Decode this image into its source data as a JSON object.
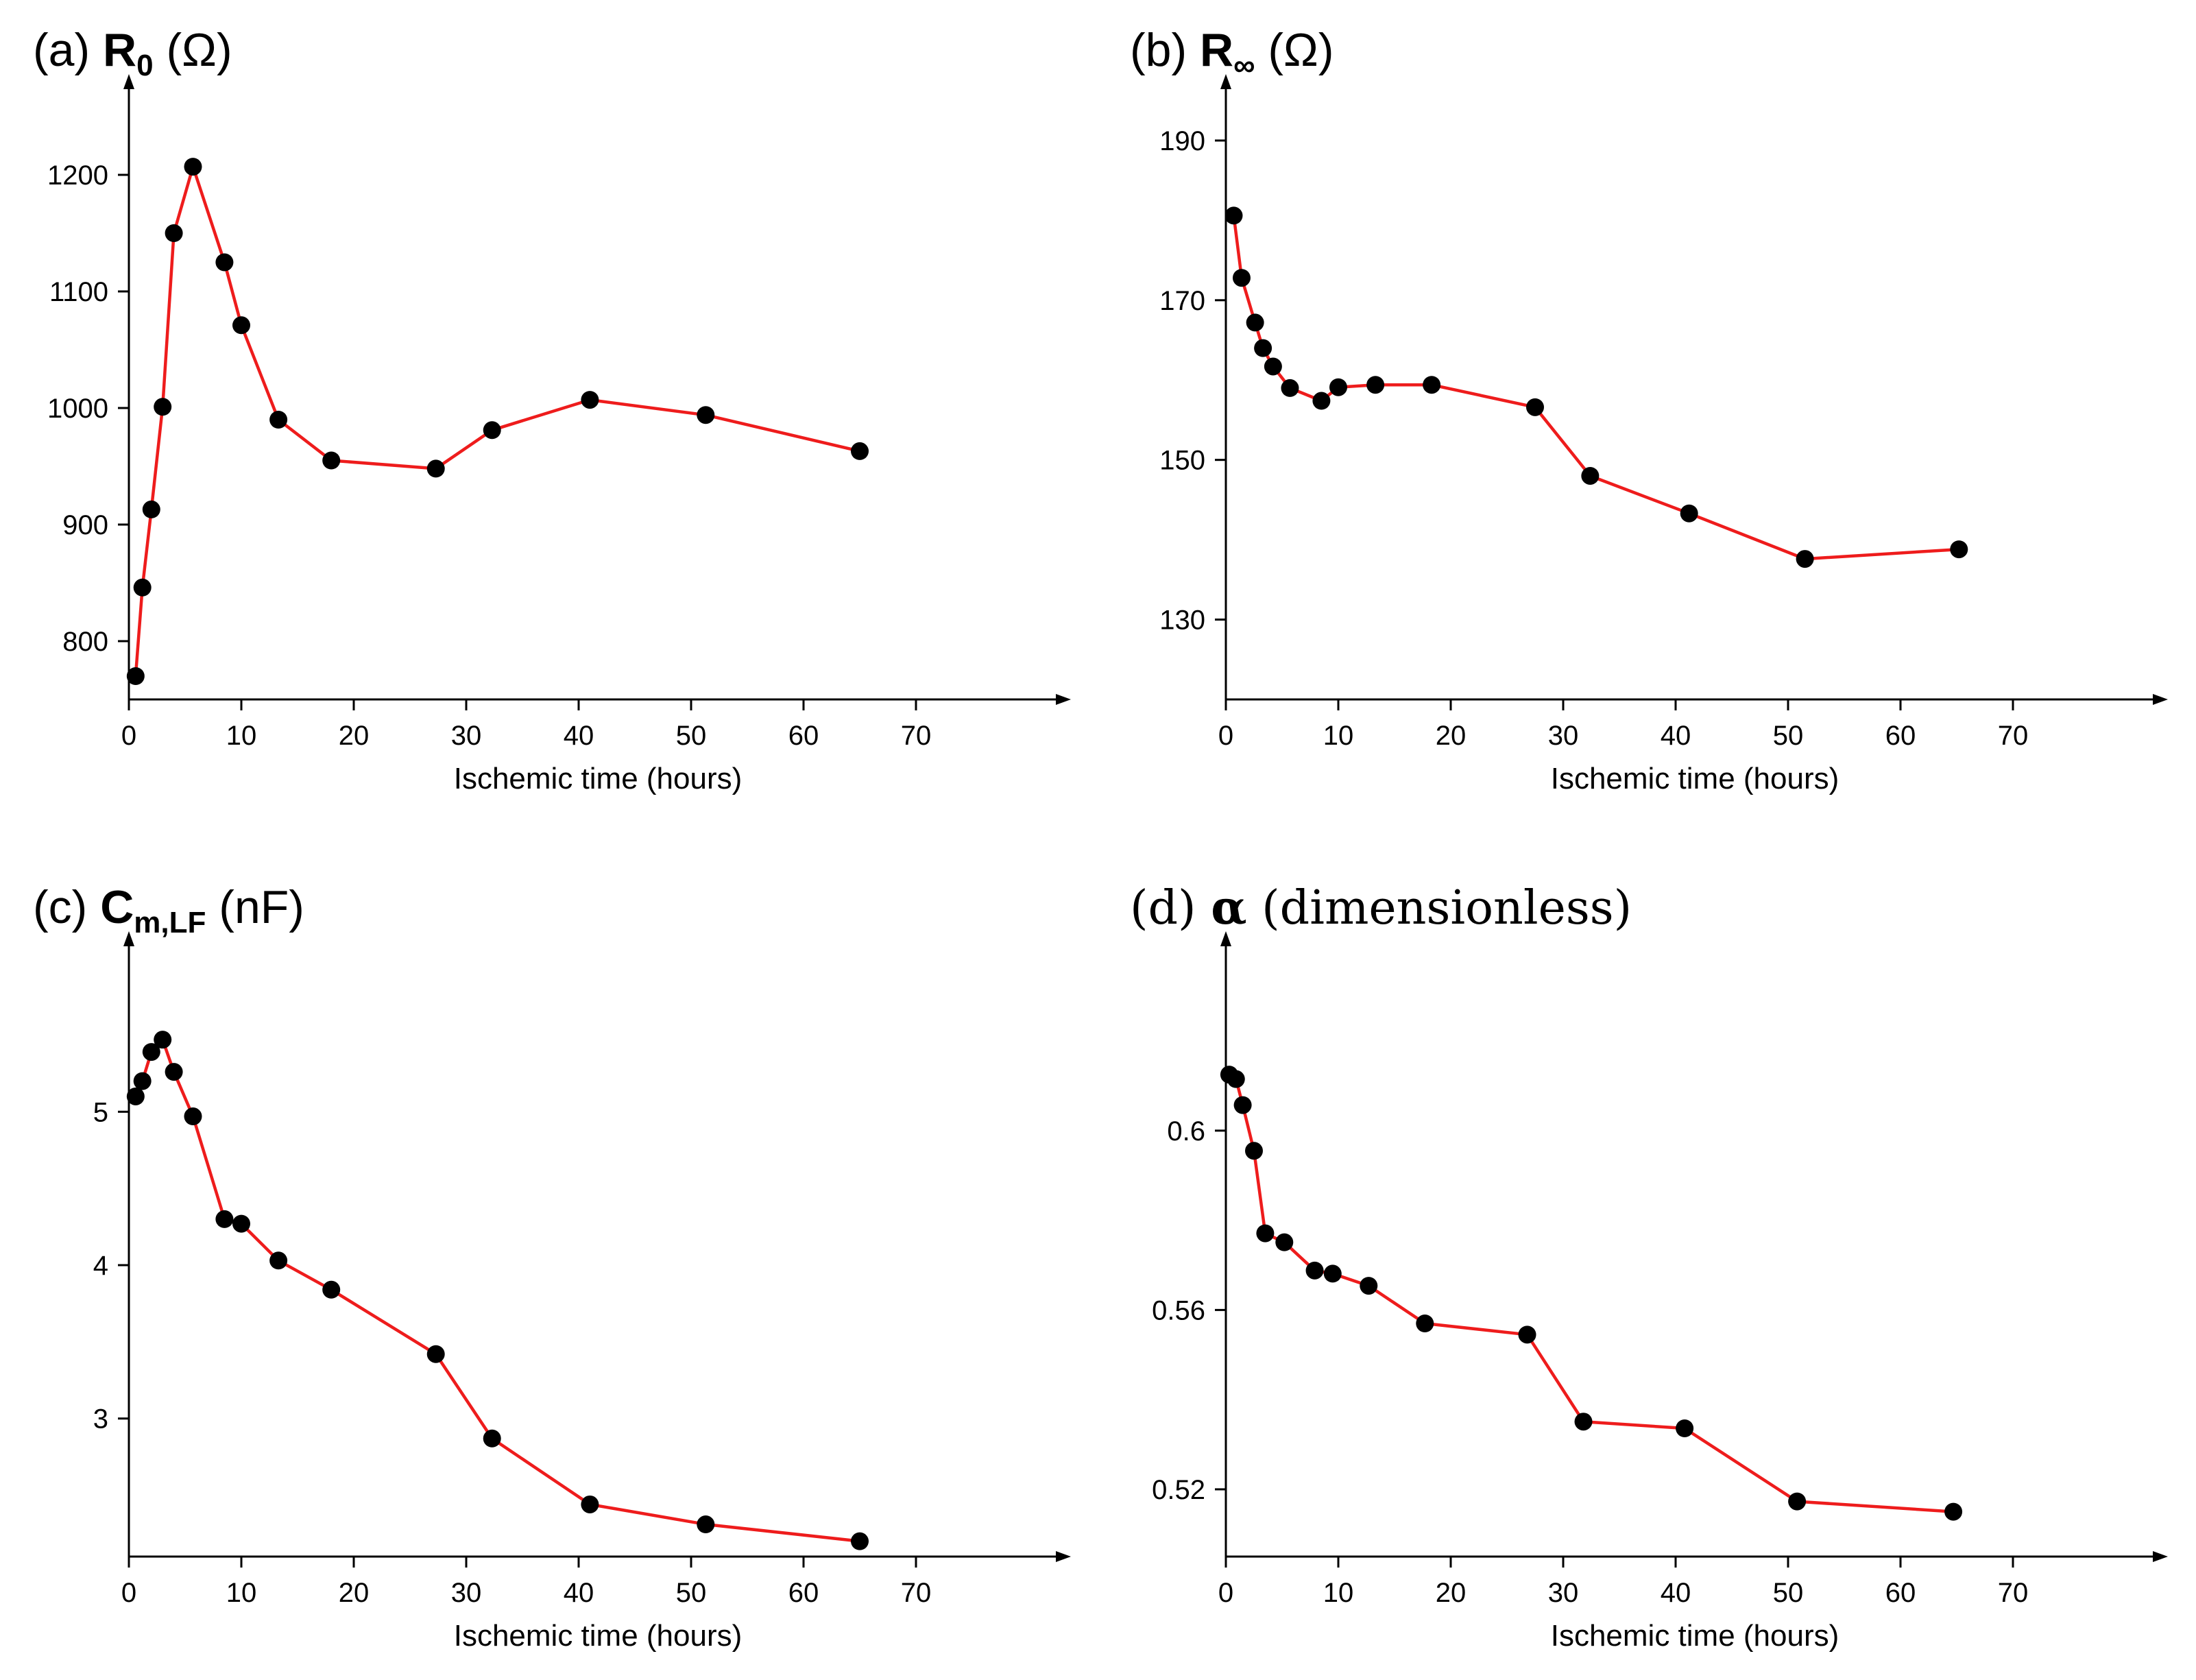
{
  "chart_data": [
    {
      "id": "a",
      "type": "line",
      "title": {
        "prefix": "(a) ",
        "symbol": "R",
        "sub": "0",
        "suffix": " (Ω)"
      },
      "xlabel": "Ischemic time (hours)",
      "xlim": [
        0,
        80
      ],
      "ylim": [
        750,
        1250
      ],
      "xticks": [
        0,
        10,
        20,
        30,
        40,
        50,
        60,
        70
      ],
      "yticks": [
        800,
        900,
        1000,
        1100,
        1200
      ],
      "ytick_labels": [
        "800",
        "900",
        "1000",
        "1100",
        "1200"
      ],
      "line_color": "#ee1c1c",
      "marker_color": "#000000",
      "x": [
        0.6,
        1.2,
        2.0,
        3.0,
        4.0,
        5.7,
        8.5,
        10.0,
        13.3,
        18.0,
        27.3,
        32.3,
        41.0,
        51.3,
        65.0
      ],
      "y": [
        770,
        846,
        913,
        1001,
        1150,
        1207,
        1125,
        1071,
        990,
        955,
        948,
        981,
        1007,
        994,
        963
      ]
    },
    {
      "id": "b",
      "type": "line",
      "title": {
        "prefix": "(b) ",
        "symbol": "R",
        "sub": "∞",
        "suffix": " (Ω)"
      },
      "xlabel": "Ischemic time (hours)",
      "xlim": [
        0,
        80
      ],
      "ylim": [
        120,
        193
      ],
      "xticks": [
        0,
        10,
        20,
        30,
        40,
        50,
        60,
        70
      ],
      "yticks": [
        130,
        150,
        170,
        190
      ],
      "ytick_labels": [
        "130",
        "150",
        "170",
        "190"
      ],
      "line_color": "#ee1c1c",
      "marker_color": "#000000",
      "x": [
        0.7,
        1.4,
        2.6,
        3.3,
        4.2,
        5.7,
        8.5,
        10.0,
        13.3,
        18.3,
        27.5,
        32.4,
        41.2,
        51.5,
        65.2
      ],
      "y": [
        180.6,
        172.8,
        167.2,
        164.0,
        161.7,
        159.0,
        157.4,
        159.1,
        159.4,
        159.4,
        156.6,
        148.0,
        143.3,
        137.6,
        138.8
      ]
    },
    {
      "id": "c",
      "type": "line",
      "title": {
        "prefix": "(c) ",
        "symbol": "C",
        "sub": "m,LF",
        "suffix": " (nF)"
      },
      "xlabel": "Ischemic time (hours)",
      "xlim": [
        0,
        80
      ],
      "ylim": [
        2.1,
        5.9
      ],
      "xticks": [
        0,
        10,
        20,
        30,
        40,
        50,
        60,
        70
      ],
      "yticks": [
        3,
        4,
        5
      ],
      "ytick_labels": [
        "3",
        "4",
        "5"
      ],
      "line_color": "#ee1c1c",
      "marker_color": "#000000",
      "x": [
        0.6,
        1.2,
        2.0,
        3.0,
        4.0,
        5.7,
        8.5,
        10.0,
        13.3,
        18.0,
        27.3,
        32.3,
        41.0,
        51.3,
        65.0
      ],
      "y": [
        5.1,
        5.2,
        5.39,
        5.47,
        5.26,
        4.97,
        4.3,
        4.27,
        4.03,
        3.84,
        3.42,
        2.87,
        2.44,
        2.31,
        2.2
      ]
    },
    {
      "id": "d",
      "type": "line",
      "title": {
        "prefix": "(d) ",
        "symbol": "α",
        "sub": "",
        "suffix": "  (dimensionless)"
      },
      "xlabel": "Ischemic time (hours)",
      "xlim": [
        0,
        80
      ],
      "ylim": [
        0.505,
        0.635
      ],
      "xticks": [
        0,
        10,
        20,
        30,
        40,
        50,
        60,
        70
      ],
      "yticks": [
        0.52,
        0.56,
        0.6
      ],
      "ytick_labels": [
        "0.52",
        "0.56",
        "0.6"
      ],
      "line_color": "#ee1c1c",
      "marker_color": "#000000",
      "x": [
        0.3,
        0.9,
        1.5,
        2.5,
        3.5,
        5.2,
        7.9,
        9.5,
        12.7,
        17.7,
        26.8,
        31.8,
        40.8,
        50.8,
        64.7
      ],
      "y": [
        0.6125,
        0.6115,
        0.6057,
        0.5955,
        0.5771,
        0.5751,
        0.5688,
        0.5681,
        0.5654,
        0.557,
        0.5545,
        0.5351,
        0.5336,
        0.5173,
        0.515
      ]
    }
  ]
}
